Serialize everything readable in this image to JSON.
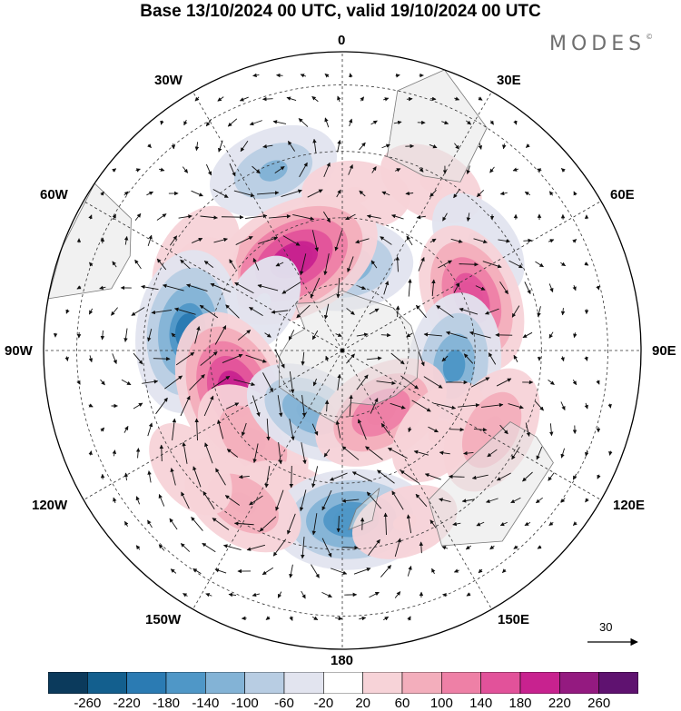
{
  "title": "Base 13/10/2024 00 UTC, valid 19/10/2024 00 UTC",
  "brand": "MODES",
  "brand_mark": "©",
  "longitude_labels": {
    "lon_0": "0",
    "lon_30e": "30E",
    "lon_60e": "60E",
    "lon_90e": "90E",
    "lon_120e": "120E",
    "lon_150e": "150E",
    "lon_180": "180",
    "lon_150w": "150W",
    "lon_120w": "120W",
    "lon_90w": "90W",
    "lon_60w": "60W",
    "lon_30w": "30W"
  },
  "reference_vector": {
    "label": "30"
  },
  "colorbar": {
    "labels": [
      "-260",
      "-220",
      "-180",
      "-140",
      "-100",
      "-60",
      "-20",
      "20",
      "60",
      "100",
      "140",
      "180",
      "220",
      "260"
    ],
    "colors": [
      "#0b3a5c",
      "#135f8e",
      "#2b7bb3",
      "#4f97c7",
      "#83b3d6",
      "#b8cde3",
      "#e2e4ef",
      "#ffffff",
      "#f7d3d8",
      "#f3aebc",
      "#ee80a6",
      "#e2529a",
      "#c8228f",
      "#941a80",
      "#5f1270"
    ]
  },
  "map_colors": {
    "land": "#e6e6e6",
    "coast": "#7a7a7a",
    "grid": "#333333",
    "arrow": "#111111"
  },
  "anomalies": [
    {
      "lon": -21,
      "colat": 58,
      "value": -100
    },
    {
      "lon": 5,
      "colat": 47,
      "value": 40
    },
    {
      "lon": 28,
      "colat": 57,
      "value": 40
    },
    {
      "lon": 52,
      "colat": 52,
      "value": -60
    },
    {
      "lon": -2,
      "colat": 26,
      "value": -140
    },
    {
      "lon": -28,
      "colat": 31,
      "value": 220
    },
    {
      "lon": -58,
      "colat": 52,
      "value": 60
    },
    {
      "lon": -70,
      "colat": 47,
      "value": 80
    },
    {
      "lon": -60,
      "colat": 28,
      "value": -30
    },
    {
      "lon": 68,
      "colat": 42,
      "value": 150
    },
    {
      "lon": -83,
      "colat": 47,
      "value": -180
    },
    {
      "lon": -112,
      "colat": 35,
      "value": 200
    },
    {
      "lon": -135,
      "colat": 38,
      "value": 100
    },
    {
      "lon": -153,
      "colat": 21,
      "value": -110
    },
    {
      "lon": -160,
      "colat": 48,
      "value": 60
    },
    {
      "lon": 98,
      "colat": 34,
      "value": -140
    },
    {
      "lon": 148,
      "colat": 22,
      "value": 130
    },
    {
      "lon": 130,
      "colat": 38,
      "value": 60
    },
    {
      "lon": 118,
      "colat": 51,
      "value": 100
    },
    {
      "lon": 177,
      "colat": 51,
      "value": -170
    },
    {
      "lon": 160,
      "colat": 55,
      "value": 40
    },
    {
      "lon": -147,
      "colat": 55,
      "value": 90
    },
    {
      "lon": -128,
      "colat": 58,
      "value": 30
    }
  ]
}
